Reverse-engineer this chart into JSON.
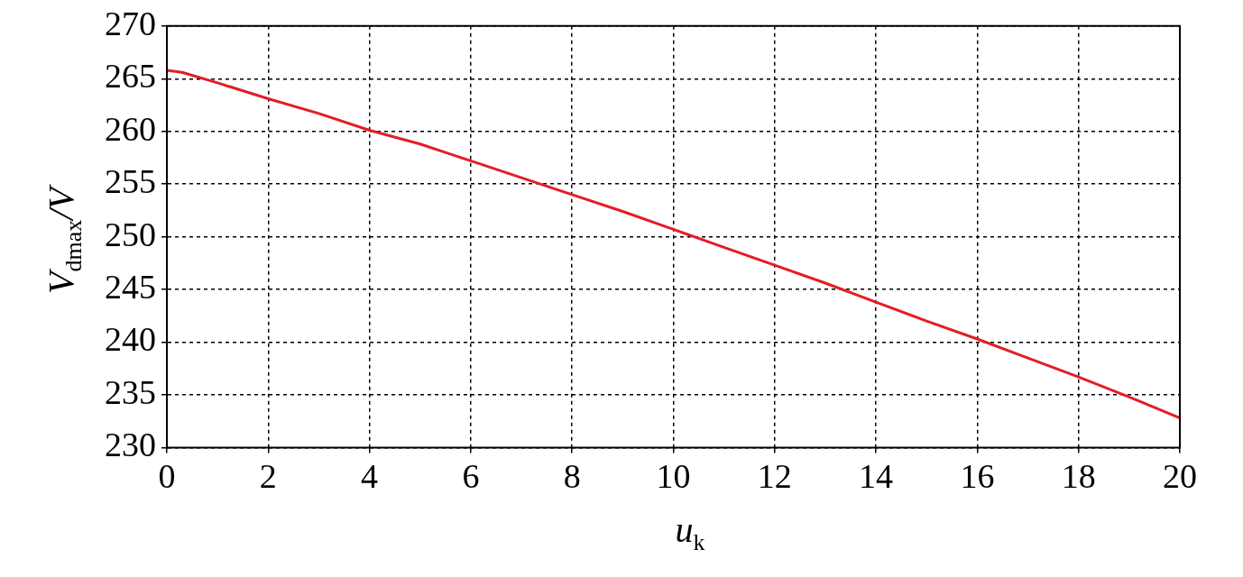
{
  "chart_data": {
    "type": "line",
    "xlabel": "u$_{k}$",
    "ylabel": "V$_{dmax}$/V",
    "x": [
      0,
      0.3,
      1,
      2,
      3,
      4,
      5,
      6,
      7,
      8,
      9,
      10,
      11,
      12,
      13,
      14,
      15,
      16,
      17,
      18,
      19,
      20
    ],
    "series": [
      {
        "color": "#e31e24",
        "values": [
          265.8,
          265.6,
          264.6,
          263.1,
          261.7,
          260.1,
          258.8,
          257.2,
          255.6,
          254.0,
          252.4,
          250.7,
          249.0,
          247.3,
          245.6,
          243.8,
          242.0,
          240.3,
          238.5,
          236.7,
          234.8,
          232.8
        ]
      }
    ],
    "xlim": [
      0,
      20
    ],
    "xticks": [
      0,
      2,
      4,
      6,
      8,
      10,
      12,
      14,
      16,
      18,
      20
    ],
    "ylim": [
      230,
      270
    ],
    "yticks": [
      230,
      235,
      240,
      245,
      250,
      255,
      260,
      265,
      270
    ],
    "grid": true,
    "legend": false,
    "marker": "none",
    "line_style": "solid"
  }
}
